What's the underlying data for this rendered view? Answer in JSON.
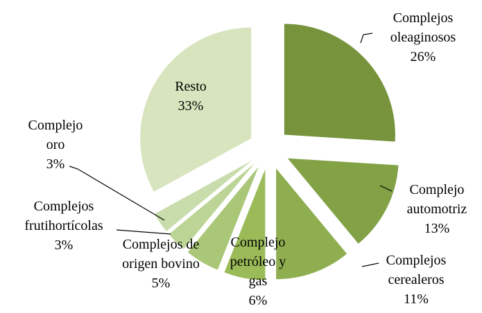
{
  "chart_data": {
    "type": "pie",
    "categories": [
      "Complejos oleaginosos",
      "Complejo automotriz",
      "Complejos cerealeros",
      "Complejo petróleo y gas",
      "Complejos de origen bovino",
      "Complejos frutihortícolas",
      "Complejo oro",
      "Resto"
    ],
    "values": [
      26,
      13,
      11,
      6,
      5,
      3,
      3,
      33
    ],
    "value_labels": [
      "26%",
      "13%",
      "11%",
      "6%",
      "5%",
      "3%",
      "3%",
      "33%"
    ],
    "colors": [
      "#77933c",
      "#83a246",
      "#8fae4f",
      "#9bbb59",
      "#aac778",
      "#bcd495",
      "#c9dcab",
      "#d7e4bd"
    ]
  }
}
